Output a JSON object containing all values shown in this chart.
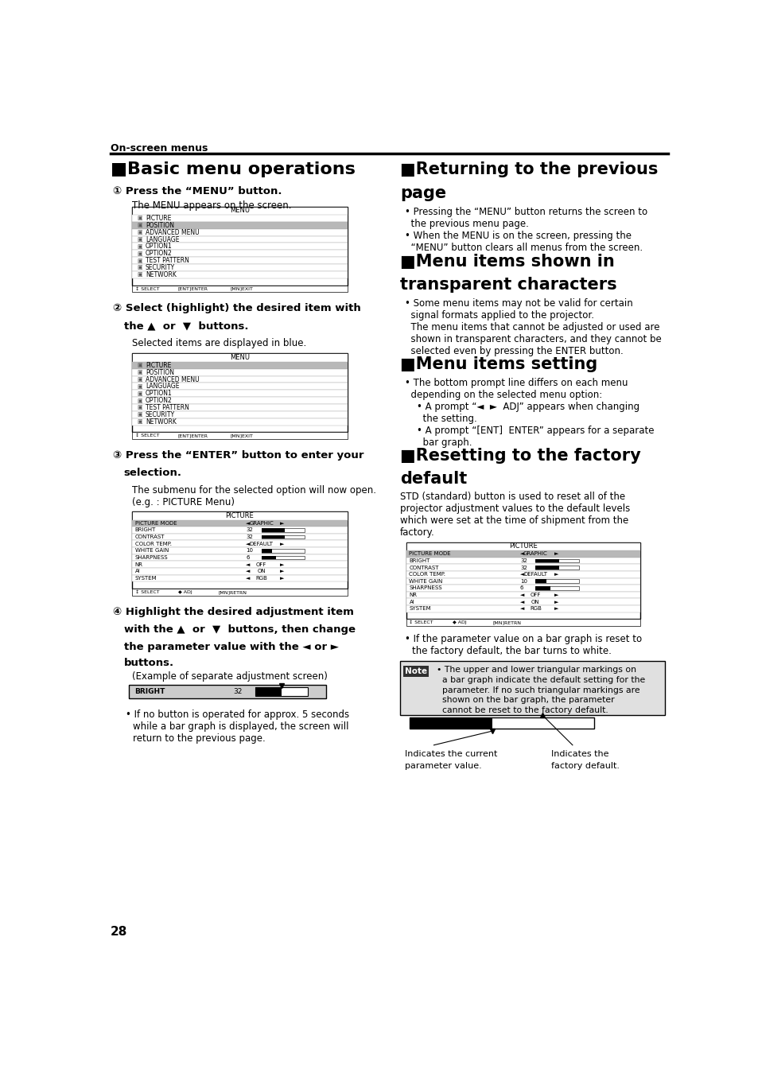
{
  "page_bg": "#ffffff",
  "header_text": "On-screen menus",
  "footer_text": "28",
  "menu_items": [
    "PICTURE",
    "POSITION",
    "ADVANCED MENU",
    "LANGUAGE",
    "OPTION1",
    "OPTION2",
    "TEST PATTERN",
    "SECURITY",
    "NETWORK"
  ],
  "picture_items": [
    "PICTURE MODE",
    "BRIGHT",
    "CONTRAST",
    "COLOR TEMP.",
    "WHITE GAIN",
    "SHARPNESS",
    "NR",
    "AI",
    "SYSTEM"
  ],
  "picture_vals": [
    "GRAPHIC",
    "32",
    "32",
    "DEFAULT",
    "10",
    "6",
    "OFF",
    "ON",
    "RGB"
  ]
}
